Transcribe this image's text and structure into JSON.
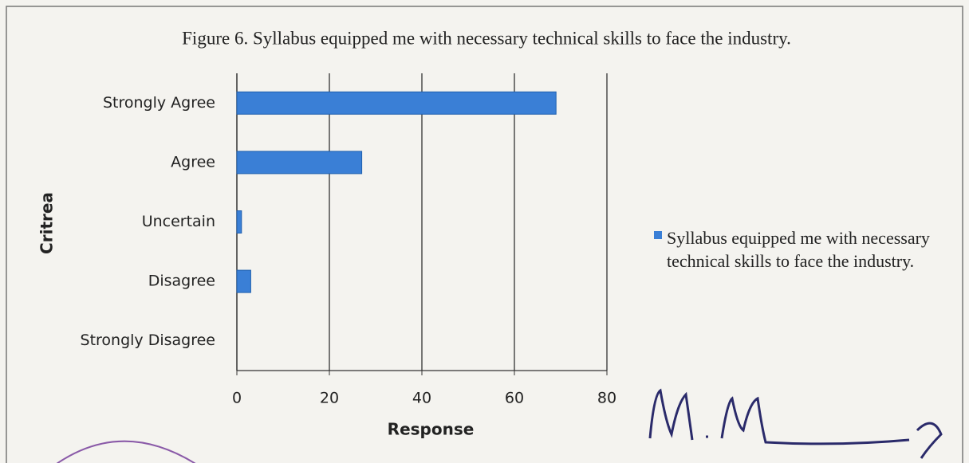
{
  "chart_data": {
    "type": "bar",
    "orientation": "horizontal",
    "title": "Figure 6. Syllabus equipped me with necessary technical skills to face the industry.",
    "x_label": "Response",
    "y_label": "Critrea",
    "categories": [
      "Strongly Agree",
      "Agree",
      "Uncertain",
      "Disagree",
      "Strongly Disagree"
    ],
    "series": [
      {
        "name": "Syllabus equipped me with necessary technical skills to face the industry.",
        "color": "#3a7fd6",
        "values": [
          69,
          27,
          1,
          3,
          0
        ]
      }
    ],
    "xlim": [
      0,
      80
    ],
    "xticks": [
      0,
      20,
      40,
      60,
      80
    ],
    "grid": true,
    "legend": "right"
  }
}
